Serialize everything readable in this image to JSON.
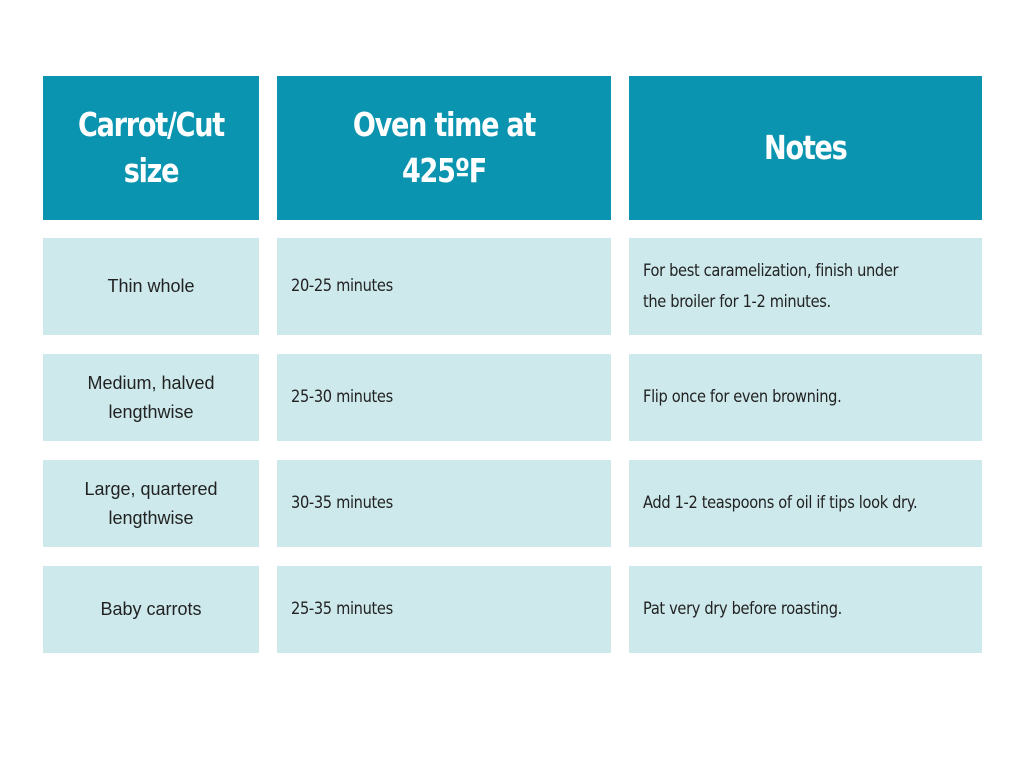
{
  "table": {
    "headers": [
      "Carrot/Cut size",
      "Oven time at 425ºF",
      "Notes"
    ],
    "rows": [
      {
        "cut": "Thin whole",
        "time": "20-25 minutes",
        "notes": "For best caramelization, finish under the broiler for 1-2 minutes."
      },
      {
        "cut": "Medium, halved lengthwise",
        "time": "25-30 minutes",
        "notes": "Flip once for even browning."
      },
      {
        "cut": "Large, quartered lengthwise",
        "time": "30-35 minutes",
        "notes": "Add 1-2 teaspoons of oil if tips look dry."
      },
      {
        "cut": "Baby carrots",
        "time": "25-35 minutes",
        "notes": "Pat very dry before roasting."
      }
    ]
  },
  "colors": {
    "header_bg": "#0b94b0",
    "header_text": "#ffffff",
    "row_bg": "#cde9ec",
    "row_text": "#222222"
  }
}
